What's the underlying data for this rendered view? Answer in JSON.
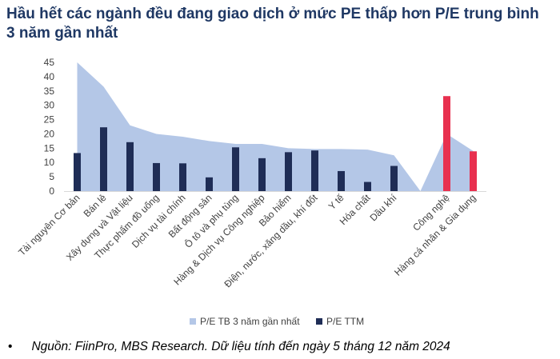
{
  "title": "Hầu hết các ngành đều đang giao dịch ở mức PE thấp hơn P/E trung bình 3 năm gần nhất",
  "source": "Nguồn: FiinPro, MBS Research. Dữ liệu tính đến ngày 5 tháng 12 năm 2024",
  "bullet": "•",
  "chart_data": {
    "type": "bar",
    "categories": [
      "Tài nguyên Cơ bản",
      "Bán lẻ",
      "Xây dựng và Vật liệu",
      "Thực phẩm đồ uống",
      "Dịch vụ tài chính",
      "Bất động sản",
      "Ô tô và phụ tùng",
      "Hàng & Dịch vụ Công nghiệp",
      "Bảo hiểm",
      "Điện, nước, xăng dầu, khí đốt",
      "Y tế",
      "Hóa chất",
      "Dầu khí",
      "",
      "Công nghệ",
      "Hàng cá nhân & Gia dụng"
    ],
    "series": [
      {
        "name": "P/E TB 3 năm gần nhất",
        "type": "area",
        "color": "#B4C7E7",
        "values": [
          45,
          36.5,
          23,
          20,
          19,
          17.5,
          16.5,
          16.5,
          15,
          14.7,
          14.7,
          14.5,
          12.5,
          0,
          20,
          14
        ]
      },
      {
        "name": "P/E TTM",
        "type": "bar",
        "color": "#1F2D56",
        "values": [
          13.3,
          22.3,
          17.1,
          9.8,
          9.7,
          4.8,
          15.3,
          11.5,
          13.6,
          14.2,
          7.0,
          3.2,
          8.8,
          null,
          null,
          null
        ]
      },
      {
        "name": "",
        "type": "bar",
        "color": "#E8304F",
        "values": [
          null,
          null,
          null,
          null,
          null,
          null,
          null,
          null,
          null,
          null,
          null,
          null,
          null,
          null,
          33.2,
          13.9
        ]
      }
    ],
    "ylim": [
      0,
      45
    ],
    "yticks": [
      0,
      5,
      10,
      15,
      20,
      25,
      30,
      35,
      40,
      45
    ],
    "grid": false,
    "legend_position": "bottom",
    "legend": [
      {
        "label": "P/E TB 3 năm gần nhất",
        "color": "#B4C7E7"
      },
      {
        "label": "P/E TTM",
        "color": "#1F2D56"
      }
    ]
  }
}
